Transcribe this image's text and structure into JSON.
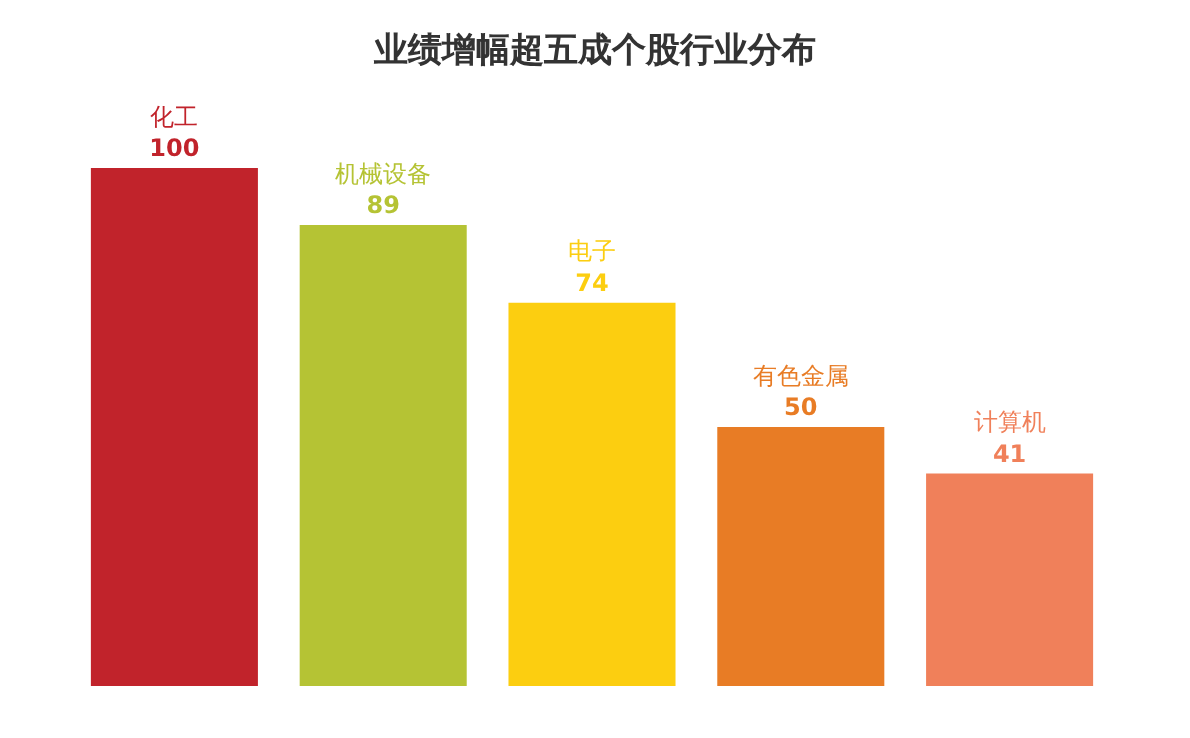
{
  "chart_data": {
    "type": "bar",
    "title": "业绩增幅超五成个股行业分布",
    "categories": [
      "化工",
      "机械设备",
      "电子",
      "有色金属",
      "计算机"
    ],
    "values": [
      100,
      89,
      74,
      50,
      41
    ],
    "colors": [
      "#c1232b",
      "#b5c334",
      "#fcce10",
      "#e87c25",
      "#f0805a"
    ],
    "data_labels": true,
    "tick_labels": false
  }
}
